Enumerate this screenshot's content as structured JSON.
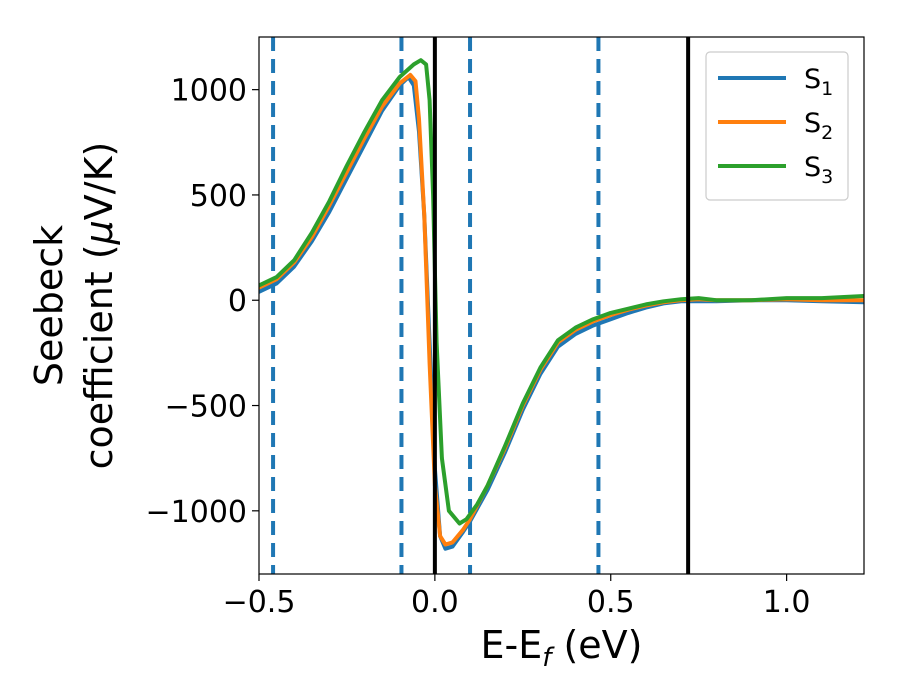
{
  "chart_data": {
    "type": "line",
    "title": "",
    "xlabel": "E-E",
    "xlabel_sub": "f",
    "xlabel_unit": " (eV)",
    "ylabel_line1": "Seebeck",
    "ylabel_line2": "coefficient  (",
    "ylabel_mu": "μ",
    "ylabel_unit": "V/K)",
    "xlim": [
      -0.5,
      1.22
    ],
    "ylim": [
      -1300,
      1250
    ],
    "xticks": [
      -0.5,
      0.0,
      0.5,
      1.0
    ],
    "xtick_labels": [
      "−0.5",
      "0.0",
      "0.5",
      "1.0"
    ],
    "yticks": [
      -1000,
      -500,
      0,
      500,
      1000
    ],
    "ytick_labels": [
      "−1000",
      "−500",
      "0",
      "500",
      "1000"
    ],
    "grid": false,
    "legend_position": "top-right",
    "vlines_solid": [
      0.0,
      0.72
    ],
    "vlines_dashed": [
      -0.46,
      -0.095,
      0.1,
      0.465
    ],
    "series": [
      {
        "name": "S",
        "sub": "1",
        "color": "#1f77b4",
        "points": [
          [
            -0.5,
            40
          ],
          [
            -0.45,
            80
          ],
          [
            -0.4,
            160
          ],
          [
            -0.35,
            280
          ],
          [
            -0.3,
            420
          ],
          [
            -0.25,
            580
          ],
          [
            -0.2,
            740
          ],
          [
            -0.15,
            900
          ],
          [
            -0.1,
            1020
          ],
          [
            -0.075,
            1060
          ],
          [
            -0.06,
            1020
          ],
          [
            -0.045,
            800
          ],
          [
            -0.03,
            400
          ],
          [
            -0.015,
            -200
          ],
          [
            0.0,
            -800
          ],
          [
            0.015,
            -1120
          ],
          [
            0.03,
            -1180
          ],
          [
            0.05,
            -1170
          ],
          [
            0.08,
            -1100
          ],
          [
            0.1,
            -1050
          ],
          [
            0.15,
            -900
          ],
          [
            0.2,
            -720
          ],
          [
            0.25,
            -520
          ],
          [
            0.3,
            -350
          ],
          [
            0.35,
            -220
          ],
          [
            0.4,
            -160
          ],
          [
            0.45,
            -120
          ],
          [
            0.5,
            -90
          ],
          [
            0.55,
            -60
          ],
          [
            0.6,
            -35
          ],
          [
            0.65,
            -15
          ],
          [
            0.7,
            -5
          ],
          [
            0.75,
            -5
          ],
          [
            0.8,
            -5
          ],
          [
            0.9,
            0
          ],
          [
            1.0,
            0
          ],
          [
            1.1,
            -5
          ],
          [
            1.22,
            -10
          ]
        ]
      },
      {
        "name": "S",
        "sub": "2",
        "color": "#ff7f0e",
        "points": [
          [
            -0.5,
            60
          ],
          [
            -0.45,
            100
          ],
          [
            -0.4,
            180
          ],
          [
            -0.35,
            300
          ],
          [
            -0.3,
            450
          ],
          [
            -0.25,
            610
          ],
          [
            -0.2,
            770
          ],
          [
            -0.15,
            920
          ],
          [
            -0.1,
            1030
          ],
          [
            -0.07,
            1070
          ],
          [
            -0.055,
            1040
          ],
          [
            -0.045,
            860
          ],
          [
            -0.03,
            400
          ],
          [
            -0.015,
            -300
          ],
          [
            0.0,
            -880
          ],
          [
            0.015,
            -1120
          ],
          [
            0.03,
            -1160
          ],
          [
            0.05,
            -1150
          ],
          [
            0.08,
            -1090
          ],
          [
            0.1,
            -1040
          ],
          [
            0.15,
            -880
          ],
          [
            0.2,
            -700
          ],
          [
            0.25,
            -500
          ],
          [
            0.3,
            -330
          ],
          [
            0.35,
            -200
          ],
          [
            0.4,
            -140
          ],
          [
            0.45,
            -100
          ],
          [
            0.5,
            -70
          ],
          [
            0.55,
            -45
          ],
          [
            0.6,
            -25
          ],
          [
            0.65,
            -10
          ],
          [
            0.7,
            0
          ],
          [
            0.75,
            5
          ],
          [
            0.8,
            0
          ],
          [
            0.9,
            0
          ],
          [
            1.0,
            5
          ],
          [
            1.1,
            0
          ],
          [
            1.22,
            0
          ]
        ]
      },
      {
        "name": "S",
        "sub": "3",
        "color": "#2ca02c",
        "points": [
          [
            -0.5,
            70
          ],
          [
            -0.45,
            110
          ],
          [
            -0.4,
            190
          ],
          [
            -0.35,
            320
          ],
          [
            -0.3,
            470
          ],
          [
            -0.25,
            640
          ],
          [
            -0.2,
            800
          ],
          [
            -0.15,
            950
          ],
          [
            -0.1,
            1060
          ],
          [
            -0.06,
            1120
          ],
          [
            -0.04,
            1140
          ],
          [
            -0.025,
            1120
          ],
          [
            -0.015,
            950
          ],
          [
            -0.005,
            500
          ],
          [
            0.005,
            -200
          ],
          [
            0.02,
            -750
          ],
          [
            0.04,
            -1000
          ],
          [
            0.07,
            -1060
          ],
          [
            0.09,
            -1040
          ],
          [
            0.12,
            -970
          ],
          [
            0.15,
            -880
          ],
          [
            0.2,
            -690
          ],
          [
            0.25,
            -490
          ],
          [
            0.3,
            -320
          ],
          [
            0.35,
            -190
          ],
          [
            0.4,
            -130
          ],
          [
            0.45,
            -90
          ],
          [
            0.5,
            -60
          ],
          [
            0.55,
            -40
          ],
          [
            0.6,
            -20
          ],
          [
            0.65,
            -5
          ],
          [
            0.7,
            5
          ],
          [
            0.75,
            10
          ],
          [
            0.8,
            0
          ],
          [
            0.9,
            0
          ],
          [
            1.0,
            10
          ],
          [
            1.1,
            10
          ],
          [
            1.22,
            20
          ]
        ]
      }
    ]
  }
}
